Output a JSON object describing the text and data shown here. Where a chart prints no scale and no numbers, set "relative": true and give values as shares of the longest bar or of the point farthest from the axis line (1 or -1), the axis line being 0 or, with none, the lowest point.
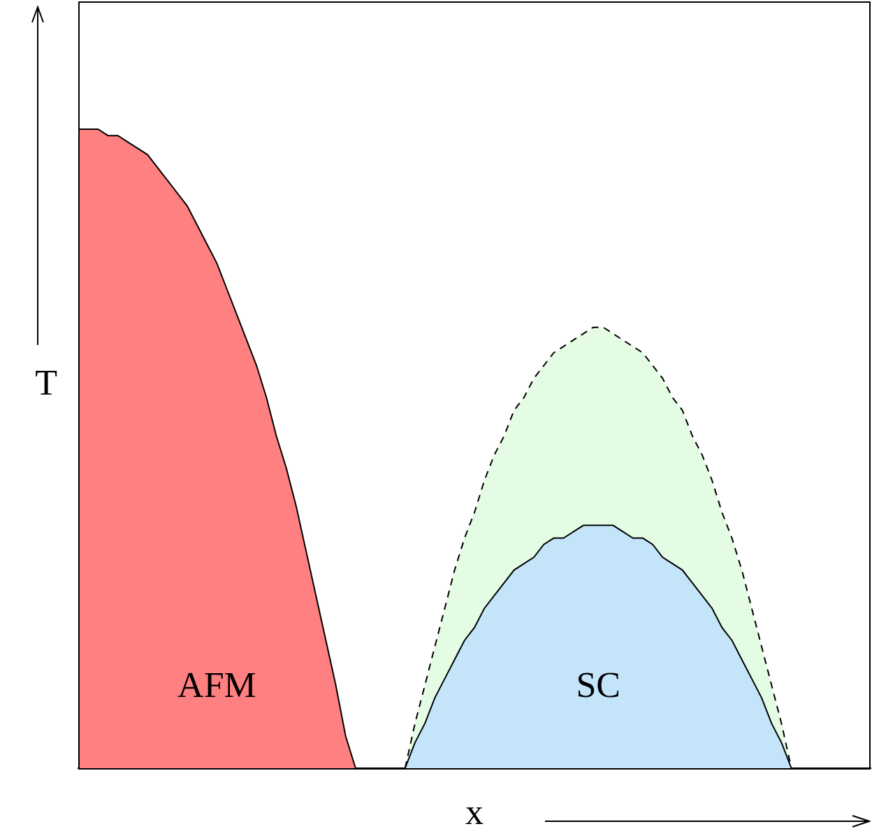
{
  "chart_data": {
    "type": "area",
    "relative": true,
    "xlabel": "x",
    "ylabel": "T",
    "tick_labels": false,
    "categories": [
      null,
      null,
      null,
      null,
      null,
      null,
      null,
      null,
      null,
      null,
      null,
      null,
      null,
      null,
      null,
      null,
      null,
      null,
      null,
      null,
      null,
      null,
      null,
      null,
      null,
      null,
      null,
      null,
      null,
      null,
      null,
      null,
      null,
      null,
      null,
      null,
      null,
      null,
      null,
      null,
      null,
      null,
      null,
      null,
      null,
      null,
      null,
      null,
      null,
      null,
      null,
      null,
      null,
      null,
      null,
      null,
      null,
      null,
      null,
      null,
      null,
      null,
      null,
      null,
      null,
      null,
      null,
      null,
      null,
      null,
      null,
      null,
      null,
      null,
      null,
      null,
      null,
      null,
      null,
      null,
      null
    ],
    "series": [
      {
        "name": "AFM",
        "color": "#ff8080",
        "values": [
          1,
          1,
          1,
          0.99,
          0.99,
          0.98,
          0.97,
          0.96,
          0.94,
          0.92,
          0.9,
          0.88,
          0.85,
          0.82,
          0.79,
          0.75,
          0.71,
          0.67,
          0.63,
          0.58,
          0.52,
          0.47,
          0.41,
          0.34,
          0.27,
          0.2,
          0.13,
          0.05,
          0,
          null,
          null,
          null,
          null,
          null,
          null,
          null,
          null,
          null,
          null,
          null,
          null,
          null,
          null,
          null,
          null,
          null,
          null,
          null,
          null,
          null,
          null,
          null,
          null,
          null,
          null,
          null,
          null,
          null,
          null,
          null,
          null,
          null,
          null,
          null,
          null,
          null,
          null,
          null,
          null,
          null,
          null,
          null,
          null,
          null,
          null,
          null,
          null,
          null,
          null,
          null,
          null
        ]
      },
      {
        "color": "#e4fce4",
        "line_style": "dashed",
        "values": [
          null,
          null,
          null,
          null,
          null,
          null,
          null,
          null,
          null,
          null,
          null,
          null,
          null,
          null,
          null,
          null,
          null,
          null,
          null,
          null,
          null,
          null,
          null,
          null,
          null,
          null,
          null,
          null,
          null,
          null,
          null,
          null,
          null,
          0,
          0.07,
          0.13,
          0.19,
          0.25,
          0.31,
          0.36,
          0.4,
          0.45,
          0.49,
          0.52,
          0.56,
          0.58,
          0.61,
          0.63,
          0.65,
          0.66,
          0.67,
          0.68,
          0.69,
          0.69,
          0.68,
          0.67,
          0.66,
          0.65,
          0.63,
          0.61,
          0.58,
          0.56,
          0.52,
          0.49,
          0.45,
          0.4,
          0.36,
          0.31,
          0.25,
          0.19,
          0.13,
          0.07,
          0,
          null,
          null,
          null,
          null,
          null,
          null,
          null,
          null
        ]
      },
      {
        "name": "SC",
        "color": "#c4e4fa",
        "values": [
          null,
          null,
          null,
          null,
          null,
          null,
          null,
          null,
          null,
          null,
          null,
          null,
          null,
          null,
          null,
          null,
          null,
          null,
          null,
          null,
          null,
          null,
          null,
          null,
          null,
          null,
          null,
          null,
          null,
          null,
          null,
          null,
          null,
          0,
          0.04,
          0.07,
          0.11,
          0.14,
          0.17,
          0.2,
          0.22,
          0.25,
          0.27,
          0.29,
          0.31,
          0.32,
          0.33,
          0.35,
          0.36,
          0.36,
          0.37,
          0.38,
          0.38,
          0.38,
          0.38,
          0.37,
          0.36,
          0.36,
          0.35,
          0.33,
          0.32,
          0.31,
          0.29,
          0.27,
          0.25,
          0.22,
          0.2,
          0.17,
          0.14,
          0.11,
          0.07,
          0.04,
          0,
          null,
          null,
          null,
          null,
          null,
          null,
          null,
          null
        ]
      }
    ]
  }
}
